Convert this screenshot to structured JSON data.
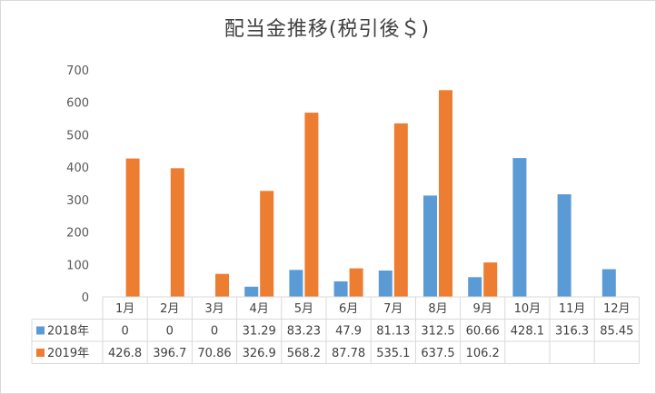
{
  "chart_data": {
    "type": "bar",
    "title": "配当金推移(税引後＄)",
    "categories": [
      "1月",
      "2月",
      "3月",
      "4月",
      "5月",
      "6月",
      "7月",
      "8月",
      "9月",
      "10月",
      "11月",
      "12月"
    ],
    "ylim": [
      0,
      700
    ],
    "yticks": [
      0,
      100,
      200,
      300,
      400,
      500,
      600,
      700
    ],
    "ytick_labels": [
      "0",
      "100",
      "200",
      "300",
      "400",
      "500",
      "600",
      "700"
    ],
    "grid": false,
    "legend": "data-table",
    "series": [
      {
        "name": "2018年",
        "color": "#5b9bd5",
        "values": [
          0,
          0,
          0,
          31.29,
          83.23,
          47.9,
          81.13,
          312.5,
          60.66,
          428.1,
          316.3,
          85.45
        ],
        "labels": [
          "0",
          "0",
          "0",
          "31.29",
          "83.23",
          "47.9",
          "81.13",
          "312.5",
          "60.66",
          "428.1",
          "316.3",
          "85.45"
        ]
      },
      {
        "name": "2019年",
        "color": "#ed7d31",
        "values": [
          426.8,
          396.7,
          70.86,
          326.9,
          568.2,
          87.78,
          535.1,
          637.5,
          106.2,
          null,
          null,
          null
        ],
        "labels": [
          "426.8",
          "396.7",
          "70.86",
          "326.9",
          "568.2",
          "87.78",
          "535.1",
          "637.5",
          "106.2",
          "",
          "",
          ""
        ]
      }
    ]
  }
}
